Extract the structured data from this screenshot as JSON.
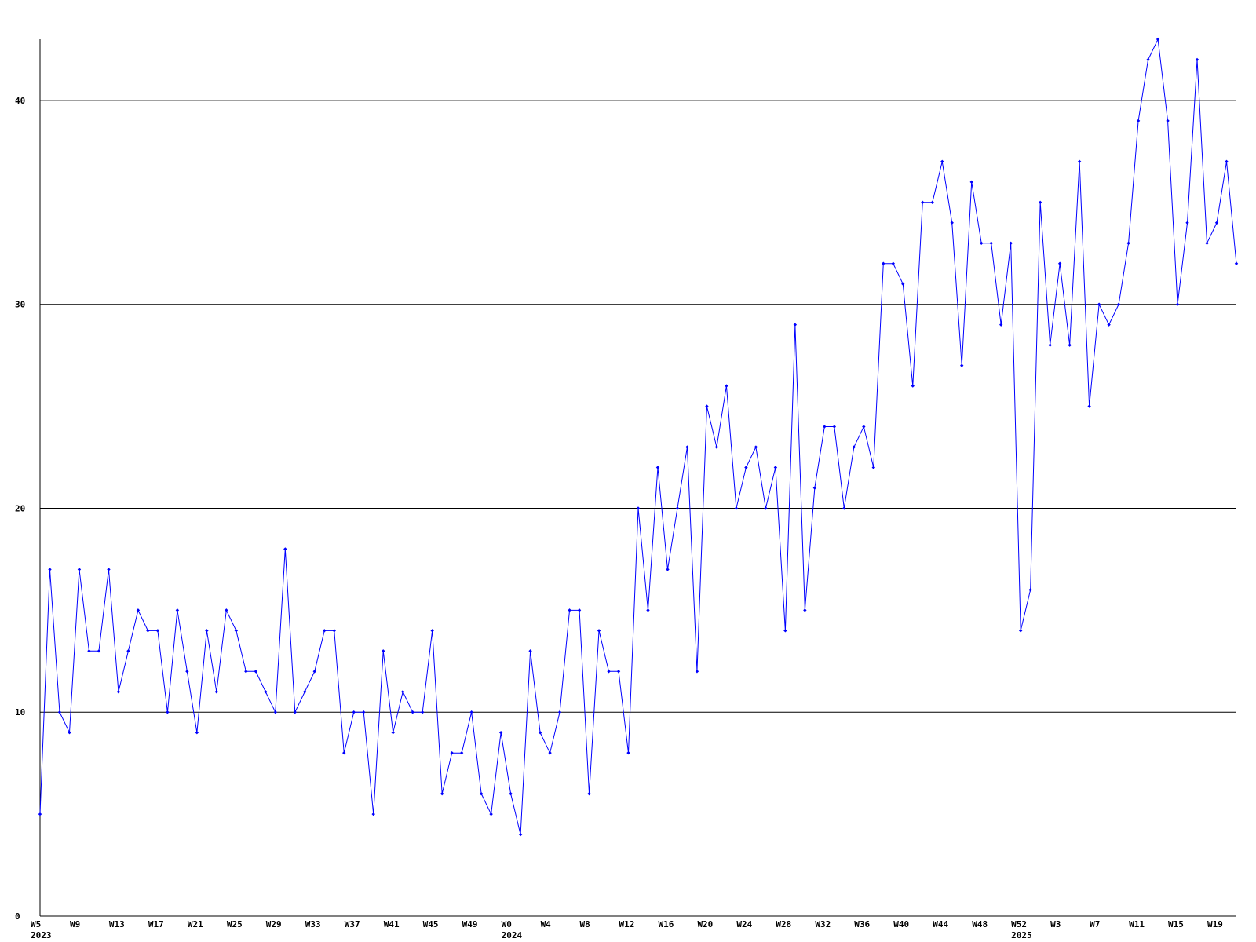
{
  "chart_data": {
    "type": "line",
    "title": "",
    "xlabel": "",
    "ylabel": "",
    "ylim": [
      0,
      43
    ],
    "y_ticks": [
      0,
      10,
      20,
      30,
      40
    ],
    "grid": "horizontal",
    "line_color": "#0000ff",
    "grid_color": "#000000",
    "x_start_week": "W5 2023",
    "x_tick_labels": [
      "W5",
      "W9",
      "W13",
      "W17",
      "W21",
      "W25",
      "W29",
      "W33",
      "W37",
      "W41",
      "W45",
      "W49",
      "W0",
      "W4",
      "W8",
      "W12",
      "W16",
      "W20",
      "W24",
      "W28",
      "W32",
      "W36",
      "W40",
      "W44",
      "W48",
      "W52",
      "W3",
      "W7",
      "W11",
      "W15",
      "W19"
    ],
    "year_labels": [
      "2023",
      "2024",
      "2025"
    ],
    "series": [
      {
        "values": [
          5,
          17,
          10,
          9,
          17,
          13,
          13,
          17,
          11,
          13,
          15,
          14,
          14,
          10,
          15,
          12,
          9,
          14,
          11,
          15,
          14,
          12,
          12,
          11,
          10,
          18,
          10,
          11,
          12,
          14,
          14,
          8,
          10,
          10,
          5,
          13,
          9,
          11,
          10,
          10,
          14,
          6,
          8,
          8,
          10,
          6,
          5,
          9,
          6,
          4,
          13,
          9,
          8,
          10,
          15,
          15,
          6,
          14,
          12,
          12,
          8,
          20,
          15,
          22,
          17,
          20,
          23,
          12,
          25,
          23,
          26,
          20,
          22,
          23,
          20,
          22,
          14,
          29,
          15,
          21,
          24,
          24,
          20,
          23,
          24,
          22,
          32,
          32,
          31,
          26,
          35,
          35,
          37,
          34,
          27,
          36,
          33,
          33,
          29,
          33,
          14,
          16,
          35,
          28,
          32,
          28,
          37,
          25,
          30,
          29,
          30,
          33,
          39,
          42,
          43,
          39,
          30,
          34,
          42,
          33,
          34,
          37,
          32
        ]
      }
    ]
  }
}
